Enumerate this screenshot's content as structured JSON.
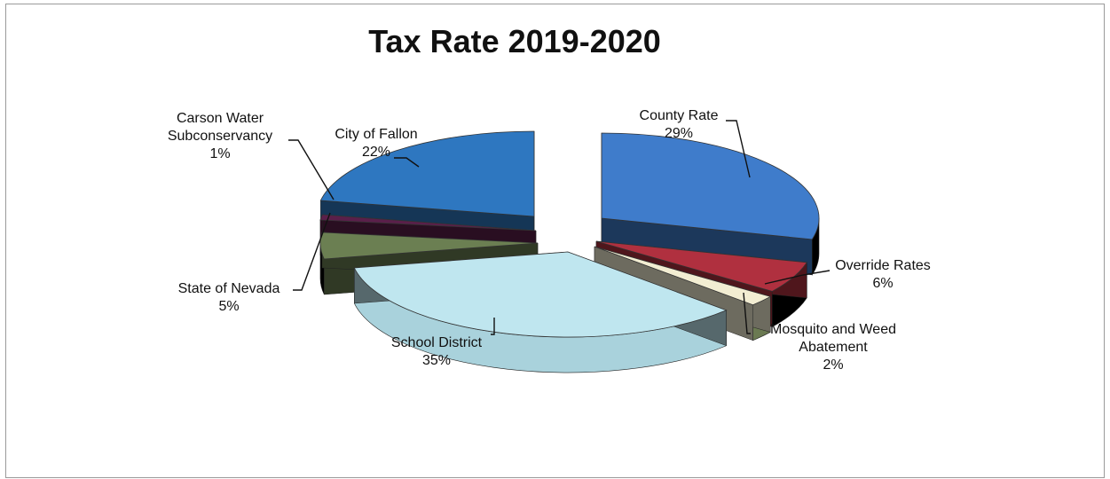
{
  "chart_data": {
    "type": "pie",
    "title": "Tax Rate 2019-2020",
    "slices": [
      {
        "label": "County Rate",
        "value": 29,
        "value_label": "29%",
        "color": "#3f7ccb"
      },
      {
        "label": "Override Rates",
        "value": 6,
        "value_label": "6%",
        "color": "#b0303f"
      },
      {
        "label": "Mosquito and Weed Abatement",
        "value": 2,
        "value_label": "2%",
        "color": "#f2edd2"
      },
      {
        "label": "School District",
        "value": 35,
        "value_label": "35%",
        "color": "#bfe6ef"
      },
      {
        "label": "State of Nevada",
        "value": 5,
        "value_label": "5%",
        "color": "#6b7f52"
      },
      {
        "label": "Carson Water Subconservancy",
        "value": 1,
        "value_label": "1%",
        "color": "#5a1f4a"
      },
      {
        "label": "City of Fallon",
        "value": 22,
        "value_label": "22%",
        "color": "#2e77c0"
      }
    ],
    "legend": "none",
    "style": "3d-exploded"
  }
}
